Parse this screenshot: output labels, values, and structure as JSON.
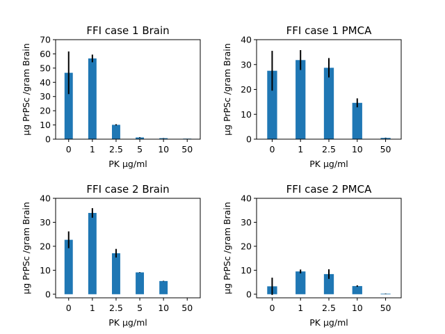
{
  "chart_data": [
    {
      "type": "bar",
      "title": "FFI case 1 Brain",
      "xlabel": "PK µg/ml",
      "ylabel": "µg PrPSc /gram Brain",
      "categories": [
        "0",
        "1",
        "2.5",
        "5",
        "10",
        "50"
      ],
      "values": [
        46.7,
        56.8,
        10.1,
        1.2,
        0.7,
        0.1
      ],
      "errors": [
        15.0,
        2.7,
        0.4,
        0.2,
        0.1,
        0.0
      ],
      "ylim": [
        0,
        70
      ],
      "yticks": [
        "0",
        "10",
        "20",
        "30",
        "40",
        "50",
        "60",
        "70"
      ],
      "grid": false,
      "color": "#1f77b4"
    },
    {
      "type": "bar",
      "title": "FFI case 1 PMCA",
      "xlabel": "PK µg/ml",
      "ylabel": "µg PrPSc /gram Brain",
      "categories": [
        "0",
        "1",
        "2.5",
        "10",
        "50"
      ],
      "values": [
        27.5,
        31.8,
        28.7,
        14.6,
        0.5
      ],
      "errors": [
        8.0,
        4.0,
        3.9,
        1.8,
        0.1
      ],
      "ylim": [
        0,
        40
      ],
      "yticks": [
        "0",
        "10",
        "20",
        "30",
        "40"
      ],
      "grid": false,
      "color": "#1f77b4"
    },
    {
      "type": "bar",
      "title": "FFI case 2 Brain",
      "xlabel": "PK µg/ml",
      "ylabel": "µg PrPSc /gram Brain",
      "categories": [
        "0",
        "1",
        "2.5",
        "5",
        "10",
        "50"
      ],
      "values": [
        22.7,
        33.9,
        17.1,
        9.1,
        5.5,
        0
      ],
      "errors": [
        3.5,
        2.0,
        1.8,
        0.1,
        0.1,
        0
      ],
      "ylim": [
        -1.5,
        40
      ],
      "yticks": [
        "0",
        "10",
        "20",
        "30",
        "40"
      ],
      "grid": false,
      "color": "#1f77b4"
    },
    {
      "type": "bar",
      "title": "FFI case 2 PMCA",
      "xlabel": "PK µg/ml",
      "ylabel": "µg PrPSc /gram Brain",
      "categories": [
        "0",
        "1",
        "2.5",
        "10",
        "50"
      ],
      "values": [
        3.3,
        9.5,
        8.4,
        3.4,
        0.2
      ],
      "errors": [
        3.6,
        0.8,
        2.0,
        0.3,
        0.1
      ],
      "ylim": [
        -1.5,
        40
      ],
      "yticks": [
        "0",
        "10",
        "20",
        "30",
        "40"
      ],
      "grid": false,
      "color": "#1f77b4"
    }
  ]
}
